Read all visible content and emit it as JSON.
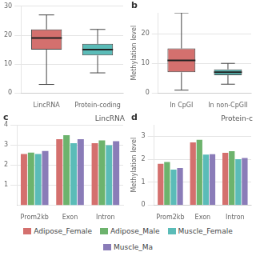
{
  "chart_data": [
    {
      "type": "box",
      "categories": [
        "LincRNA",
        "Protein-coding"
      ],
      "boxes": [
        {
          "median": 19,
          "q1": 15,
          "q3": 22,
          "whislo": 3,
          "whishi": 27
        },
        {
          "median": 15,
          "q1": 13,
          "q3": 17,
          "whislo": 7,
          "whishi": 22
        }
      ],
      "colors": [
        "#d4706e",
        "#5bbcb8"
      ],
      "ylim": [
        0,
        30
      ],
      "yticks": [
        0,
        10,
        20,
        30
      ],
      "grid": true
    },
    {
      "type": "box",
      "annotations": [
        "b"
      ],
      "categories": [
        "In CpGI",
        "In non-CpGII"
      ],
      "ylabel": "Methylation level",
      "boxes": [
        {
          "median": 11,
          "q1": 7,
          "q3": 15,
          "whislo": 1,
          "whishi": 27
        },
        {
          "median": 7,
          "q1": 6,
          "q3": 8,
          "whislo": 3,
          "whishi": 10
        }
      ],
      "colors": [
        "#d4706e",
        "#5bbcb8"
      ],
      "ylim": [
        0,
        27
      ],
      "yticks": [
        0,
        10,
        20
      ],
      "grid": true
    },
    {
      "type": "bar",
      "title": "LincRNA",
      "annotations": [
        "c"
      ],
      "categories": [
        "Prom2kb",
        "Exon",
        "Intron"
      ],
      "series": [
        {
          "name": "Adipose_Female",
          "color": "#d4706e",
          "values": [
            2.55,
            3.28,
            3.08
          ]
        },
        {
          "name": "Adipose_Male",
          "color": "#6db36d",
          "values": [
            2.62,
            3.48,
            3.22
          ]
        },
        {
          "name": "Muscle_Female",
          "color": "#5bbcb8",
          "values": [
            2.55,
            3.08,
            2.98
          ]
        },
        {
          "name": "Muscle_Ma",
          "color": "#8a7cb8",
          "values": [
            2.7,
            3.28,
            3.18
          ]
        }
      ],
      "ylim": [
        0,
        4.0
      ],
      "yticks": [
        1,
        2,
        3,
        4
      ],
      "grid": true,
      "legend": "bottom"
    },
    {
      "type": "bar",
      "title": "Protein-c",
      "annotations": [
        "d"
      ],
      "categories": [
        "Prom2kb",
        "Exon",
        "Intron"
      ],
      "ylabel": "Methylation level",
      "series": [
        {
          "name": "Adipose_Female",
          "color": "#d4706e",
          "values": [
            1.8,
            2.73,
            2.28
          ]
        },
        {
          "name": "Adipose_Male",
          "color": "#6db36d",
          "values": [
            1.88,
            2.85,
            2.35
          ]
        },
        {
          "name": "Muscle_Female",
          "color": "#5bbcb8",
          "values": [
            1.55,
            2.2,
            2.0
          ]
        },
        {
          "name": "Muscle_Ma",
          "color": "#8a7cb8",
          "values": [
            1.62,
            2.22,
            2.05
          ]
        }
      ],
      "ylim": [
        0,
        3.5
      ],
      "yticks": [
        0,
        1,
        2,
        3
      ],
      "grid": true,
      "legend": "bottom"
    }
  ]
}
